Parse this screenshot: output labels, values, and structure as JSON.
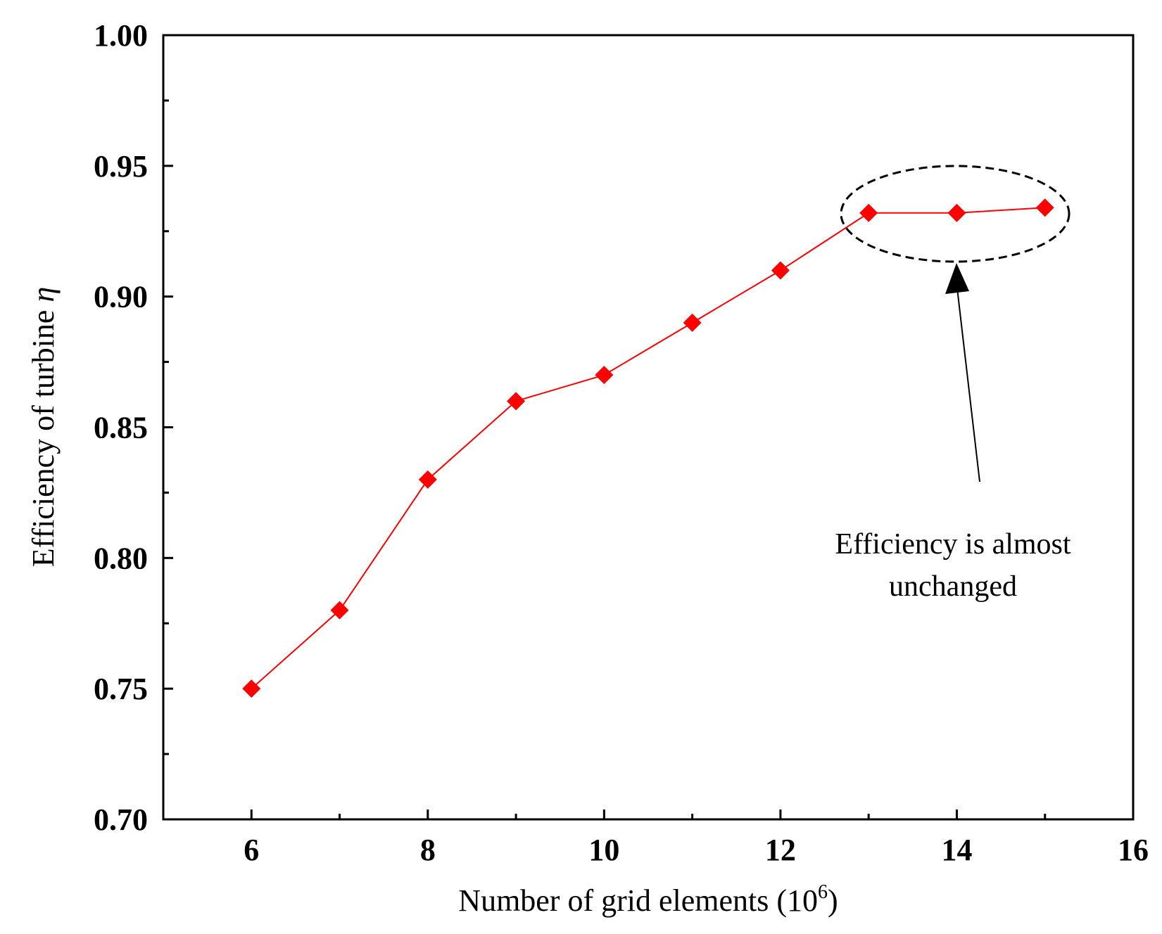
{
  "chart_data": {
    "type": "line",
    "title": "",
    "xlabel": "Number of grid elements (10",
    "xlabel_sup": "6",
    "xlabel_close": ")",
    "ylabel": "Efficiency of turbine ",
    "ylabel_symbol": "η",
    "xlim": [
      5,
      16
    ],
    "ylim": [
      0.7,
      1.0
    ],
    "x_ticks": [
      "6",
      "8",
      "10",
      "12",
      "14",
      "16"
    ],
    "y_ticks": [
      "0.70",
      "0.75",
      "0.80",
      "0.85",
      "0.90",
      "0.95",
      "1.00"
    ],
    "grid": false,
    "series": [
      {
        "name": "Efficiency",
        "color": "#ff0000",
        "marker": "diamond",
        "x": [
          6,
          7,
          8,
          9,
          10,
          11,
          12,
          13,
          14,
          15
        ],
        "values": [
          0.75,
          0.78,
          0.83,
          0.86,
          0.87,
          0.89,
          0.91,
          0.932,
          0.932,
          0.934
        ]
      }
    ],
    "annotation": {
      "line1": "Efficiency is almost",
      "line2": "unchanged"
    }
  }
}
